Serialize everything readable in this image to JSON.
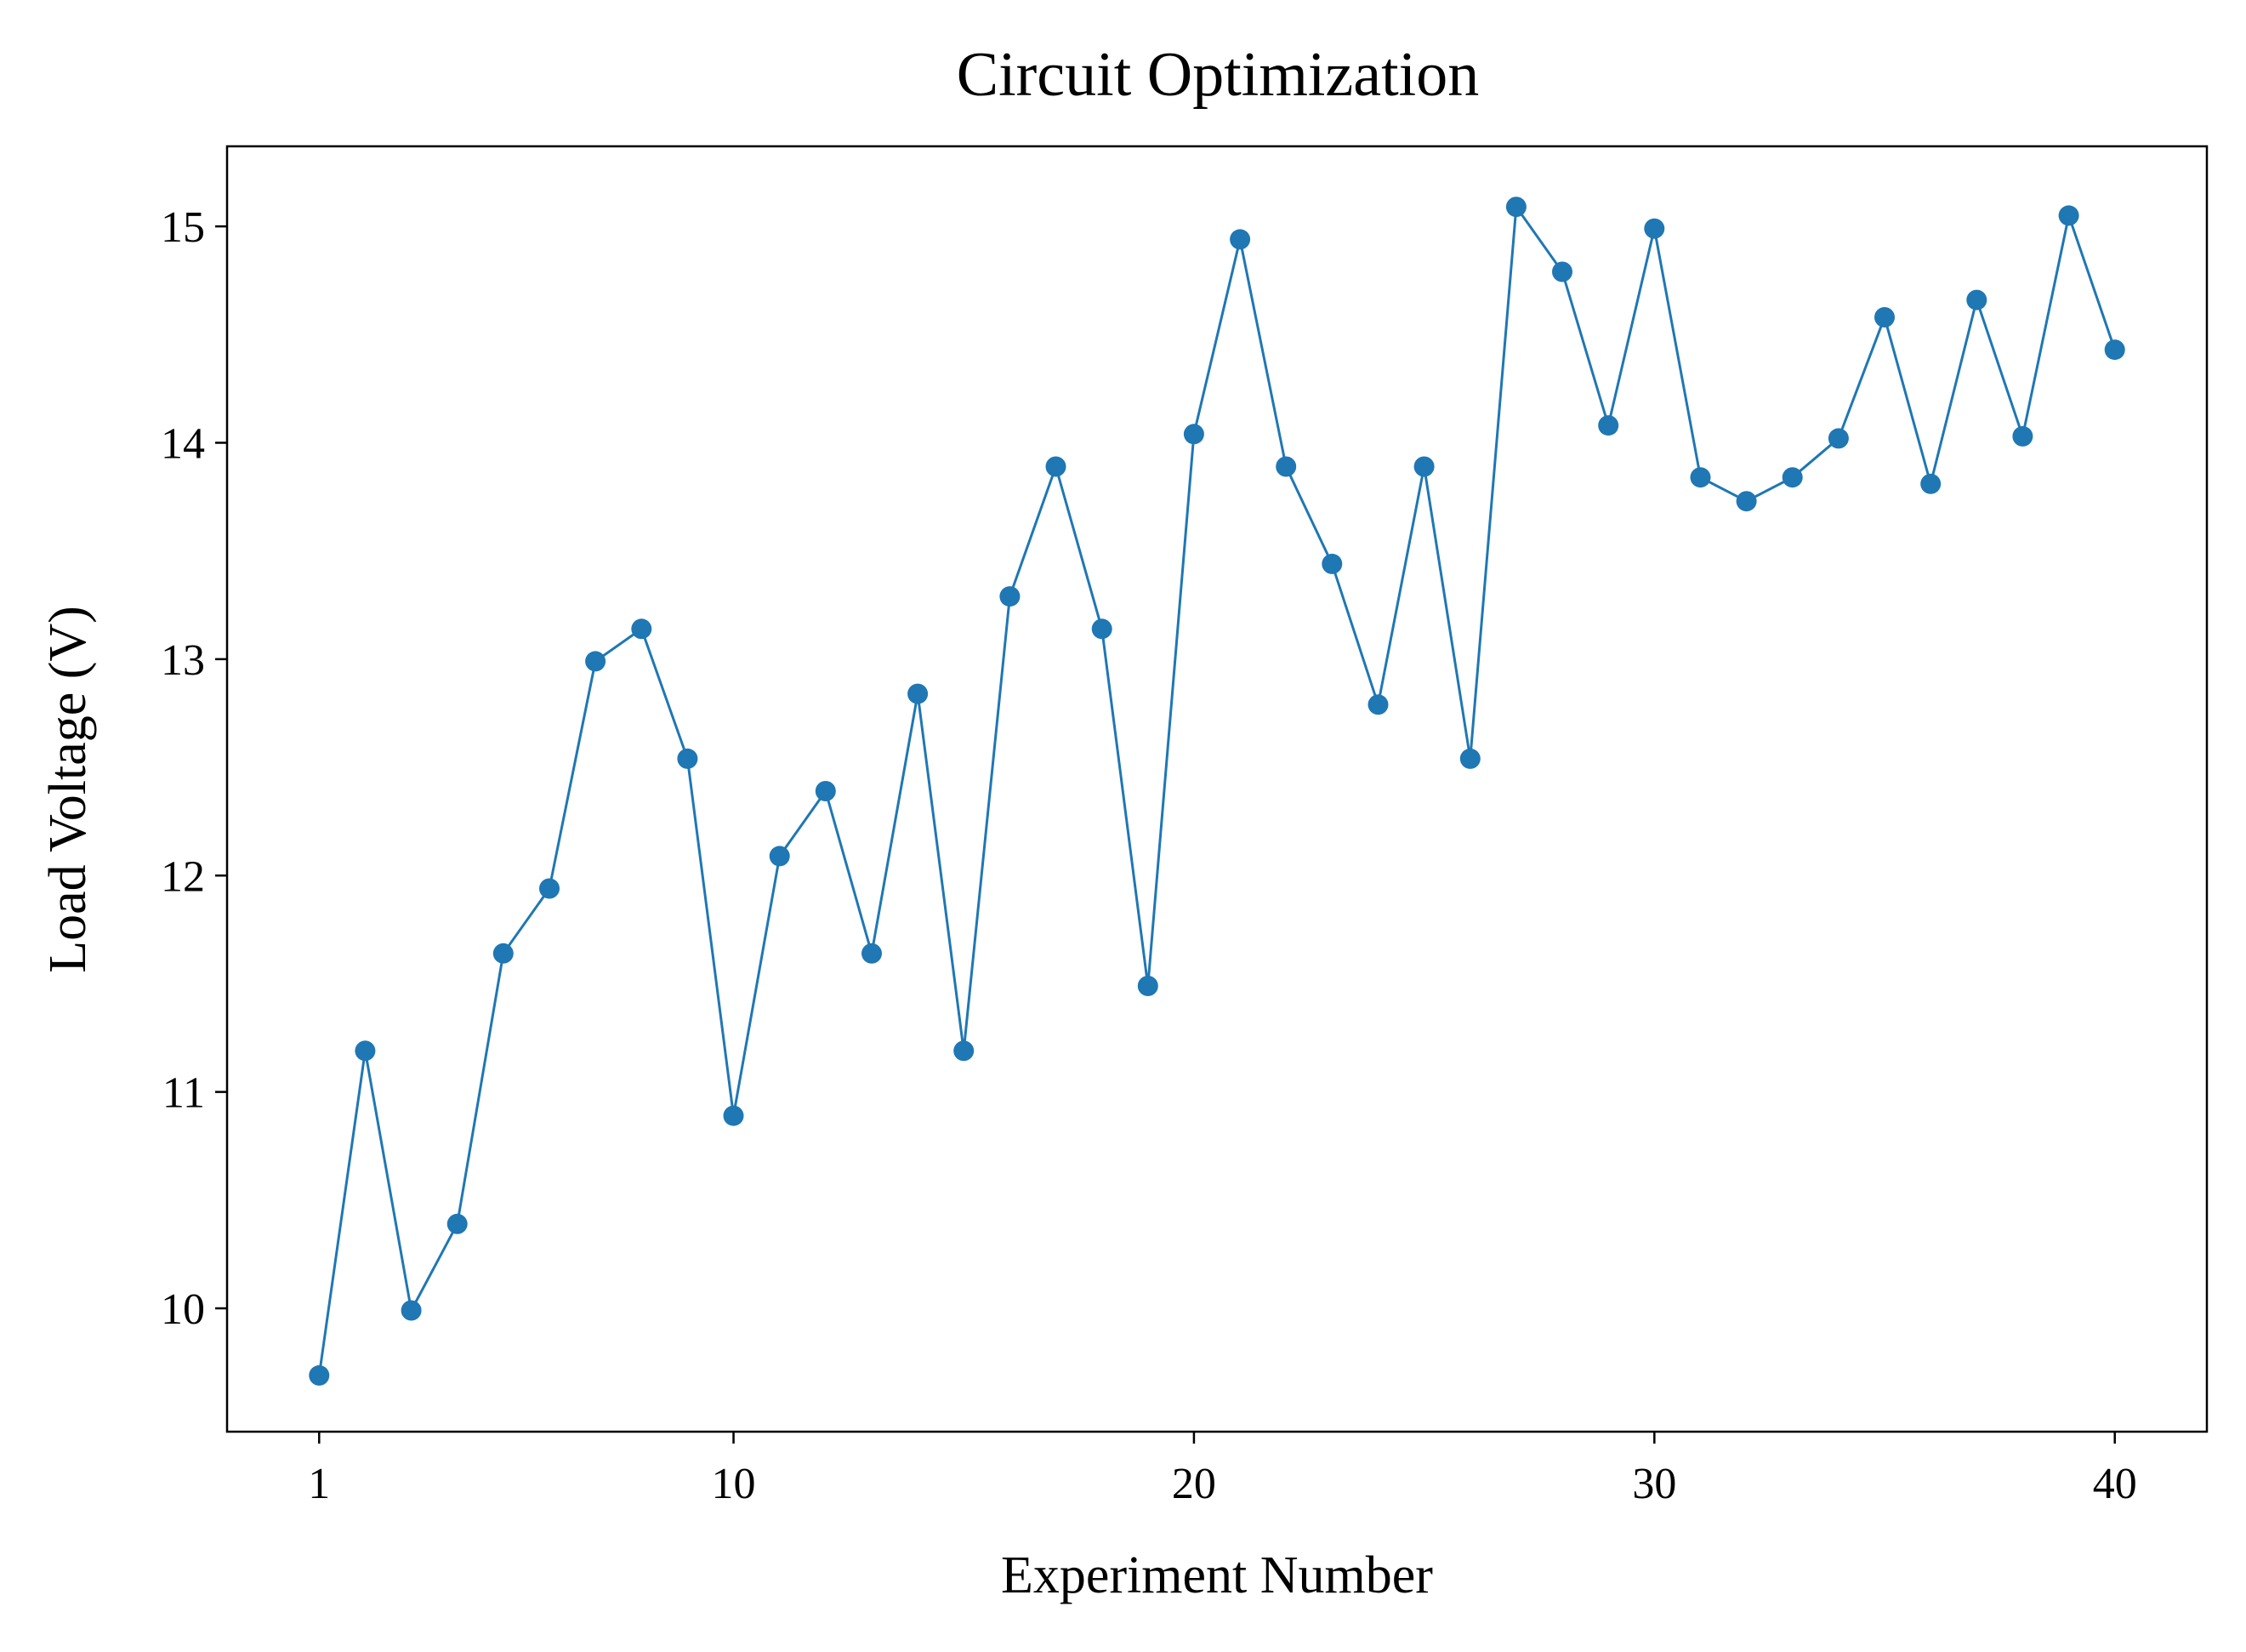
{
  "chart_data": {
    "type": "line",
    "title": "Circuit Optimization",
    "xlabel": "Experiment Number",
    "ylabel": "Load Voltage (V)",
    "x": [
      1,
      2,
      3,
      4,
      5,
      6,
      7,
      8,
      9,
      10,
      11,
      12,
      13,
      14,
      15,
      16,
      17,
      18,
      19,
      20,
      21,
      22,
      23,
      24,
      25,
      26,
      27,
      28,
      29,
      30,
      31,
      32,
      33,
      34,
      35,
      36,
      37,
      38,
      39,
      40
    ],
    "series": [
      {
        "values": [
          9.69,
          11.19,
          9.99,
          10.39,
          11.64,
          11.94,
          12.99,
          13.14,
          12.54,
          10.89,
          12.09,
          12.39,
          11.64,
          12.84,
          11.19,
          13.29,
          13.89,
          13.14,
          11.49,
          14.04,
          14.94,
          13.89,
          13.44,
          12.79,
          13.89,
          12.54,
          15.09,
          14.79,
          14.08,
          14.99,
          13.84,
          13.73,
          13.84,
          14.02,
          14.58,
          13.81,
          14.66,
          14.03,
          15.05,
          14.43
        ],
        "color": "#1f77b4",
        "marker": "circle"
      }
    ],
    "xticks": [
      1,
      10,
      20,
      30,
      40
    ],
    "yticks": [
      10,
      11,
      12,
      13,
      14,
      15
    ],
    "xlim": [
      -1,
      42
    ],
    "ylim": [
      9.43,
      15.37
    ],
    "grid": false,
    "legend": "none"
  }
}
